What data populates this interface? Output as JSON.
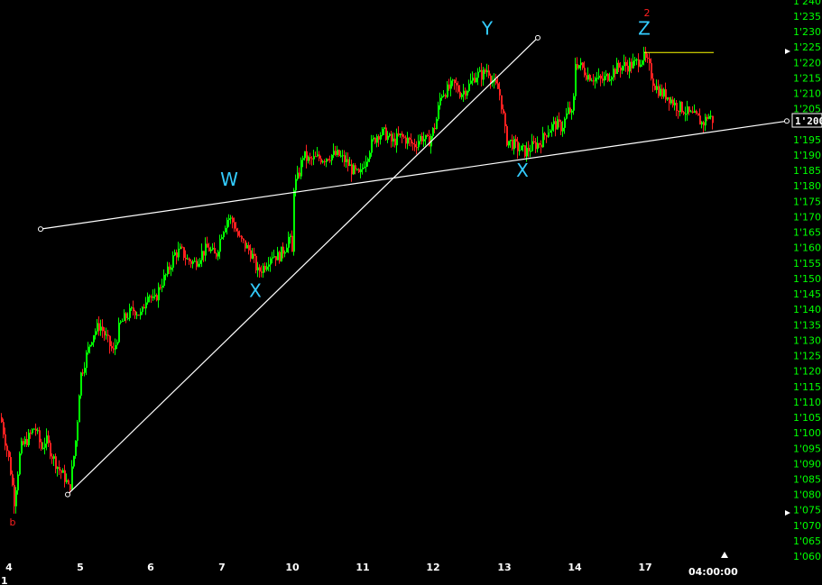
{
  "chart_data": {
    "type": "candlestick",
    "colors": {
      "up": "#00ff00",
      "down": "#ff2020",
      "background": "#000000",
      "axis_label": "#00ff00",
      "trendline": "#ffffff",
      "level_line": "#ffff00",
      "wave_label": "#33ccff"
    },
    "y_axis": {
      "min": 1.06,
      "max": 1.24,
      "tick_step": 0.005,
      "tick_labels": [
        "1'240",
        "1'235",
        "1'230",
        "1'225",
        "1'220",
        "1'215",
        "1'210",
        "1'205",
        "1'200",
        "1'195",
        "1'190",
        "1'185",
        "1'180",
        "1'175",
        "1'170",
        "1'165",
        "1'160",
        "1'155",
        "1'150",
        "1'145",
        "1'140",
        "1'135",
        "1'130",
        "1'125",
        "1'120",
        "1'115",
        "1'110",
        "1'105",
        "1'100",
        "1'095",
        "1'090",
        "1'085",
        "1'080",
        "1'075",
        "1'070",
        "1'065",
        "1'060"
      ],
      "current_price_label": "1'200"
    },
    "x_axis": {
      "tick_labels": [
        "4",
        "5",
        "6",
        "7",
        "10",
        "11",
        "12",
        "13",
        "14",
        "17"
      ],
      "time_label": "04:00:00",
      "corner_label": "1"
    },
    "price_path": [
      [
        0,
        1.105
      ],
      [
        10,
        1.09
      ],
      [
        15,
        1.078
      ],
      [
        22,
        1.095
      ],
      [
        30,
        1.098
      ],
      [
        38,
        1.102
      ],
      [
        45,
        1.095
      ],
      [
        50,
        1.098
      ],
      [
        58,
        1.092
      ],
      [
        65,
        1.088
      ],
      [
        72,
        1.085
      ],
      [
        76,
        1.081
      ],
      [
        80,
        1.09
      ],
      [
        84,
        1.1
      ],
      [
        88,
        1.118
      ],
      [
        95,
        1.125
      ],
      [
        102,
        1.132
      ],
      [
        110,
        1.135
      ],
      [
        118,
        1.13
      ],
      [
        125,
        1.126
      ],
      [
        132,
        1.135
      ],
      [
        140,
        1.138
      ],
      [
        148,
        1.14
      ],
      [
        156,
        1.138
      ],
      [
        163,
        1.146
      ],
      [
        170,
        1.142
      ],
      [
        177,
        1.148
      ],
      [
        185,
        1.152
      ],
      [
        193,
        1.158
      ],
      [
        200,
        1.159
      ],
      [
        207,
        1.156
      ],
      [
        215,
        1.155
      ],
      [
        222,
        1.158
      ],
      [
        230,
        1.16
      ],
      [
        238,
        1.157
      ],
      [
        245,
        1.165
      ],
      [
        252,
        1.17
      ],
      [
        258,
        1.168
      ],
      [
        264,
        1.163
      ],
      [
        270,
        1.161
      ],
      [
        278,
        1.158
      ],
      [
        285,
        1.152
      ],
      [
        292,
        1.154
      ],
      [
        300,
        1.158
      ],
      [
        308,
        1.157
      ],
      [
        315,
        1.16
      ],
      [
        320,
        1.164
      ],
      [
        323,
        1.158
      ],
      [
        325,
        1.18
      ],
      [
        330,
        1.183
      ],
      [
        335,
        1.19
      ],
      [
        342,
        1.188
      ],
      [
        350,
        1.189
      ],
      [
        358,
        1.189
      ],
      [
        366,
        1.19
      ],
      [
        374,
        1.19
      ],
      [
        382,
        1.188
      ],
      [
        390,
        1.185
      ],
      [
        398,
        1.183
      ],
      [
        402,
        1.187
      ],
      [
        410,
        1.193
      ],
      [
        418,
        1.197
      ],
      [
        426,
        1.197
      ],
      [
        434,
        1.194
      ],
      [
        442,
        1.196
      ],
      [
        450,
        1.195
      ],
      [
        458,
        1.193
      ],
      [
        466,
        1.196
      ],
      [
        474,
        1.194
      ],
      [
        482,
        1.2
      ],
      [
        488,
        1.21
      ],
      [
        495,
        1.211
      ],
      [
        502,
        1.213
      ],
      [
        510,
        1.21
      ],
      [
        518,
        1.212
      ],
      [
        526,
        1.216
      ],
      [
        534,
        1.216
      ],
      [
        540,
        1.218
      ],
      [
        546,
        1.213
      ],
      [
        552,
        1.211
      ],
      [
        556,
        1.205
      ],
      [
        560,
        1.195
      ],
      [
        566,
        1.194
      ],
      [
        574,
        1.192
      ],
      [
        582,
        1.191
      ],
      [
        590,
        1.193
      ],
      [
        598,
        1.194
      ],
      [
        606,
        1.198
      ],
      [
        614,
        1.2
      ],
      [
        622,
        1.199
      ],
      [
        630,
        1.205
      ],
      [
        634,
        1.202
      ],
      [
        637,
        1.22
      ],
      [
        642,
        1.219
      ],
      [
        650,
        1.216
      ],
      [
        658,
        1.215
      ],
      [
        666,
        1.214
      ],
      [
        674,
        1.216
      ],
      [
        682,
        1.218
      ],
      [
        690,
        1.219
      ],
      [
        698,
        1.219
      ],
      [
        705,
        1.22
      ],
      [
        712,
        1.222
      ],
      [
        718,
        1.219
      ],
      [
        724,
        1.213
      ],
      [
        732,
        1.21
      ],
      [
        740,
        1.209
      ],
      [
        748,
        1.206
      ],
      [
        756,
        1.205
      ],
      [
        764,
        1.203
      ],
      [
        772,
        1.202
      ],
      [
        778,
        1.2
      ],
      [
        784,
        1.203
      ],
      [
        790,
        1.201
      ]
    ],
    "trendlines": [
      {
        "from": [
          45,
          1.166
        ],
        "to": [
          872,
          1.201
        ]
      },
      {
        "from": [
          75,
          1.08
        ],
        "to": [
          596,
          1.228
        ]
      }
    ],
    "level_line": {
      "from": [
        714,
        1.2232
      ],
      "to": [
        791,
        1.2232
      ]
    },
    "wave_labels": [
      {
        "text": "W",
        "at": [
          254,
          1.18
        ]
      },
      {
        "text": "X",
        "at": [
          283,
          1.144
        ]
      },
      {
        "text": "Y",
        "at": [
          540,
          1.229
        ]
      },
      {
        "text": "X",
        "at": [
          579,
          1.183
        ]
      },
      {
        "text": "Z",
        "at": [
          714,
          1.229
        ]
      }
    ],
    "red_labels": [
      {
        "text": "2",
        "at": [
          717,
          1.235
        ]
      },
      {
        "text": "b",
        "at": [
          14,
          1.07
        ]
      }
    ]
  }
}
